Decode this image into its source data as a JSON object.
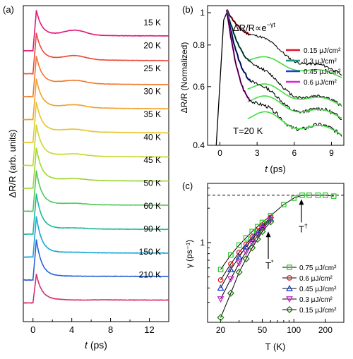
{
  "chart_data": [
    {
      "id": "a",
      "panel_label": "(a)",
      "type": "line",
      "xlabel_italic": "t",
      "xlabel_rest": " (ps)",
      "ylabel": "ΔR/R (arb. units)",
      "xlim": [
        -1,
        14
      ],
      "xticks": [
        0,
        4,
        8,
        12
      ],
      "traces": [
        {
          "label": "15 K",
          "color": "#e0187a",
          "peak": 1.05,
          "dip": 0.42,
          "bump": 0.55,
          "tail": 0.38
        },
        {
          "label": "20 K",
          "color": "#ec4a3a",
          "peak": 1.05,
          "dip": 0.4,
          "bump": 0.5,
          "tail": 0.33
        },
        {
          "label": "25 K",
          "color": "#f07a2e",
          "peak": 1.05,
          "dip": 0.38,
          "bump": 0.46,
          "tail": 0.3
        },
        {
          "label": "30 K",
          "color": "#f0a22c",
          "peak": 1.05,
          "dip": 0.35,
          "bump": 0.42,
          "tail": 0.27
        },
        {
          "label": "35 K",
          "color": "#e6c62c",
          "peak": 1.05,
          "dip": 0.32,
          "bump": 0.38,
          "tail": 0.24
        },
        {
          "label": "40 K",
          "color": "#c9d82e",
          "peak": 1.05,
          "dip": 0.28,
          "bump": 0.33,
          "tail": 0.21
        },
        {
          "label": "45 K",
          "color": "#9ed636",
          "peak": 1.05,
          "dip": 0.24,
          "bump": 0.28,
          "tail": 0.18
        },
        {
          "label": "50 K",
          "color": "#52c85a",
          "peak": 1.05,
          "dip": 0.2,
          "bump": 0.23,
          "tail": 0.15
        },
        {
          "label": "60 K",
          "color": "#1fb89a",
          "peak": 1.05,
          "dip": 0.16,
          "bump": 0.18,
          "tail": 0.12
        },
        {
          "label": "90 K",
          "color": "#1aa6d6",
          "peak": 1.05,
          "dip": 0.13,
          "bump": 0.14,
          "tail": 0.1
        },
        {
          "label": "150 K",
          "color": "#2a62d8",
          "peak": 1.05,
          "dip": 0.11,
          "bump": 0.11,
          "tail": 0.09
        },
        {
          "label": "210 K",
          "color": "#d4306e",
          "peak": 0.75,
          "dip": 0.1,
          "bump": 0.09,
          "tail": 0.07
        }
      ]
    },
    {
      "id": "b",
      "panel_label": "(b)",
      "type": "line",
      "xlabel_italic": "t",
      "xlabel_rest": " (ps)",
      "ylabel": "ΔR/R (Normalized)",
      "y_scale": "log",
      "xlim": [
        -1,
        10
      ],
      "ylim": [
        0.4,
        1.05
      ],
      "xticks": [
        0,
        3,
        6,
        9
      ],
      "yticks": [
        0.4,
        0.6,
        0.8,
        1
      ],
      "ytick_labels": [
        "0.4",
        "0.6",
        "0.8",
        "1"
      ],
      "formula_main": "ΔR/R∝e",
      "formula_sup": "−γt",
      "annotation": "T=20 K",
      "fit_color": "#44dd44",
      "series": [
        {
          "name": "0.15 μJ/cm²",
          "color": "#e8102a",
          "gamma": 0.18,
          "tail": 0.74
        },
        {
          "name": "0.3 μJ/cm²",
          "color": "#1a9a7a",
          "gamma": 0.35,
          "tail": 0.61
        },
        {
          "name": "0.45 μJ/cm²",
          "color": "#1f3cd6",
          "gamma": 0.48,
          "tail": 0.56
        },
        {
          "name": "0.6 μJ/cm²",
          "color": "#e020e0",
          "gamma": 0.6,
          "tail": 0.5
        }
      ]
    },
    {
      "id": "c",
      "panel_label": "(c)",
      "type": "scatter",
      "xlabel": "T (K)",
      "ylabel": "γ (ps⁻¹)",
      "x_scale": "log",
      "y_scale": "log",
      "xlim": [
        15,
        300
      ],
      "ylim": [
        0.2,
        3.3
      ],
      "xticks": [
        20,
        50,
        100,
        200
      ],
      "yticks": [
        1
      ],
      "saturation_level": 2.6,
      "annotations": [
        {
          "text": "T",
          "sup": "*",
          "arrow_x": 57,
          "arrow_from": 0.72,
          "arrow_to": 1.25
        },
        {
          "text": "T",
          "sup": "†",
          "arrow_x": 118,
          "arrow_from": 1.5,
          "arrow_to": 2.4
        }
      ],
      "series": [
        {
          "name": "0.75 μJ/cm²",
          "color": "#33cc33",
          "marker": "square",
          "x": [
            20,
            25,
            30,
            35,
            40,
            45,
            50,
            60,
            80,
            100,
            120,
            140,
            170,
            200,
            240
          ],
          "y": [
            0.58,
            0.78,
            0.95,
            1.1,
            1.25,
            1.38,
            1.5,
            1.72,
            2.15,
            2.45,
            2.6,
            2.6,
            2.6,
            2.6,
            2.55
          ]
        },
        {
          "name": "0.6 μJ/cm²",
          "color": "#e81a1a",
          "marker": "circle",
          "x": [
            20,
            25,
            30,
            35,
            40,
            45,
            50,
            60
          ],
          "y": [
            0.47,
            0.65,
            0.82,
            0.97,
            1.12,
            1.27,
            1.42,
            1.66
          ]
        },
        {
          "name": "0.45 μJ/cm²",
          "color": "#1f3cd6",
          "marker": "triangle-up",
          "x": [
            20,
            25,
            30,
            35,
            40,
            45,
            50,
            60
          ],
          "y": [
            0.4,
            0.58,
            0.75,
            0.92,
            1.07,
            1.22,
            1.37,
            1.62
          ]
        },
        {
          "name": "0.3 μJ/cm²",
          "color": "#cc22cc",
          "marker": "triangle-down",
          "x": [
            20,
            25,
            30,
            35,
            40,
            45,
            50,
            60
          ],
          "y": [
            0.32,
            0.48,
            0.66,
            0.83,
            0.99,
            1.15,
            1.32,
            1.58
          ]
        },
        {
          "name": "0.15 μJ/cm²",
          "color": "#2a7a1a",
          "marker": "diamond",
          "x": [
            20,
            25,
            30,
            35,
            40,
            45,
            50,
            60
          ],
          "y": [
            0.22,
            0.36,
            0.55,
            0.72,
            0.9,
            1.07,
            1.25,
            1.52
          ]
        }
      ]
    }
  ]
}
